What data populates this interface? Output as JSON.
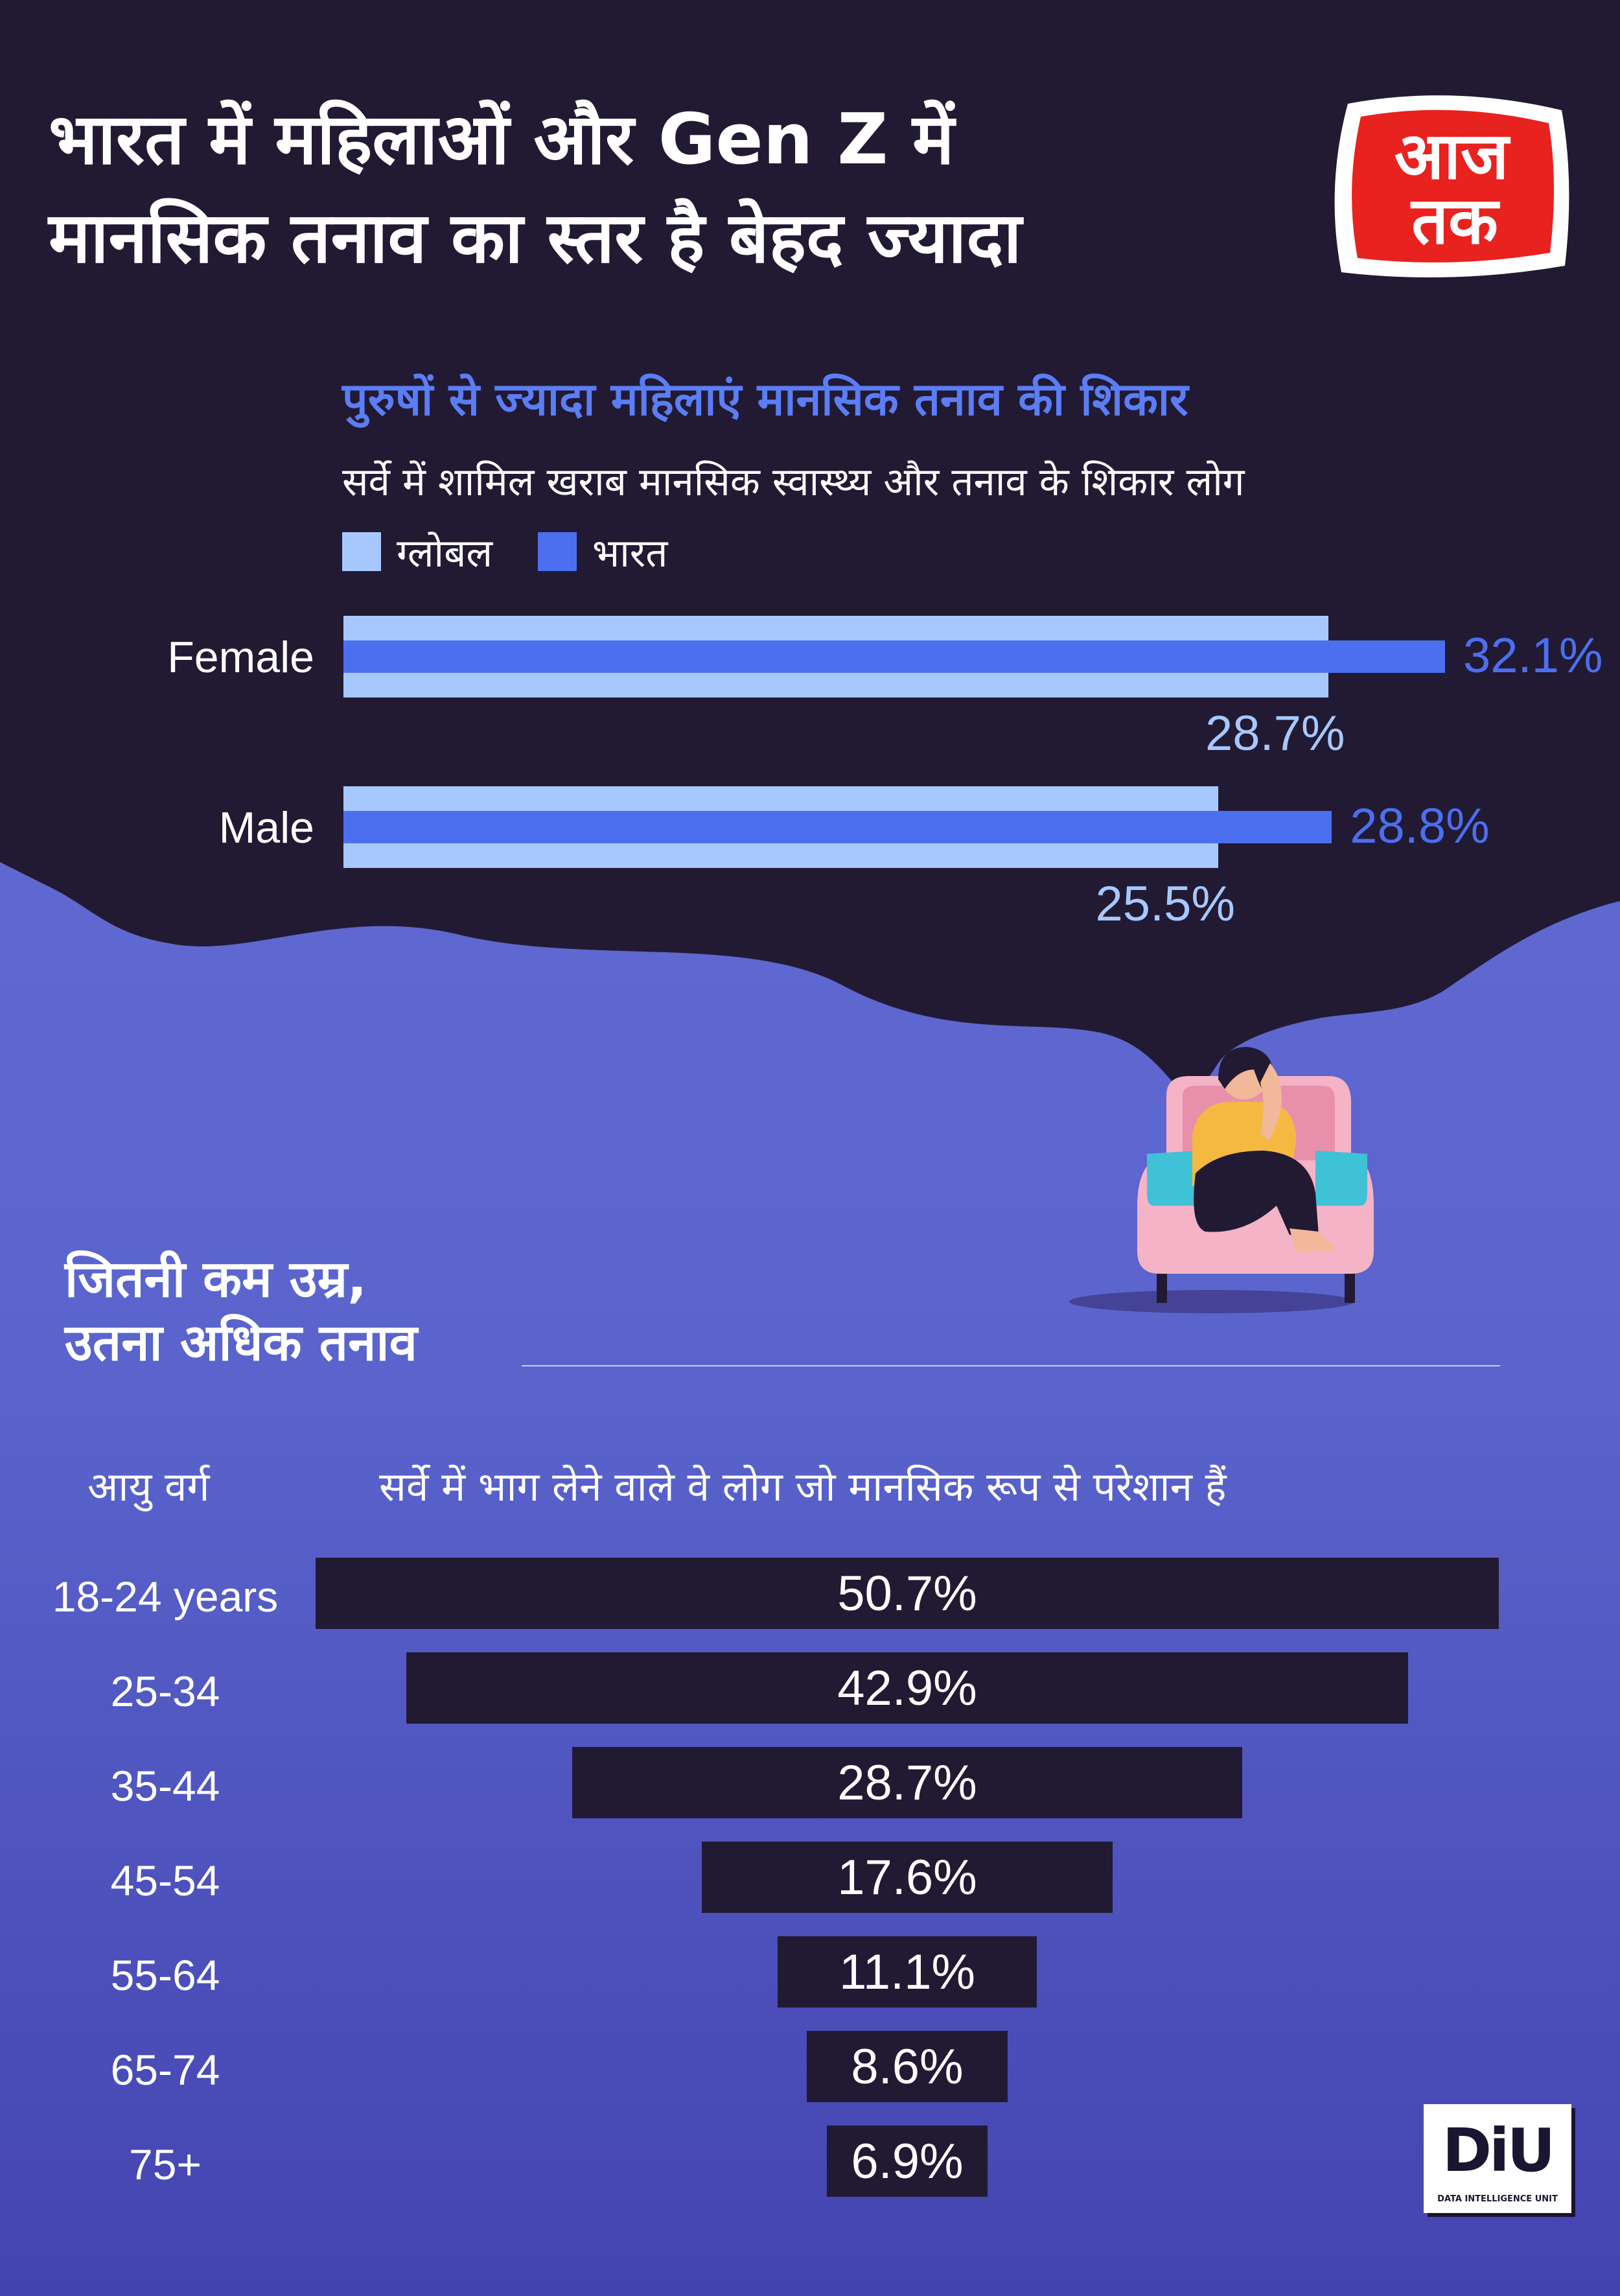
{
  "header": {
    "title_line1": "भारत में महिलाओं और Gen Z में",
    "title_line2": "मानसिक तनाव का स्तर है बेहद ज्यादा",
    "logo_line1": "आज",
    "logo_line2": "तक",
    "logo_icon": "aaj-tak-logo-icon"
  },
  "gender_section": {
    "subtitle": "पुरुषों से ज्यादा महिलाएं मानसिक तनाव की शिकार",
    "description": "सर्वे में शामिल खराब मानसिक स्वास्थ्य और तनाव के शिकार लोग",
    "legend": [
      {
        "label": "ग्लोबल",
        "color": "#a7c8ff"
      },
      {
        "label": "भारत",
        "color": "#4c6ff0"
      }
    ]
  },
  "age_section": {
    "title_line1": "जितनी कम उम्र,",
    "title_line2": "उतना अधिक तनाव",
    "col_age": "आयु वर्ग",
    "col_value": "सर्वे में भाग लेने वाले वे लोग जो मानसिक रूप से परेशान हैं"
  },
  "footer": {
    "diu_logo": "DiU",
    "diu_text": "DATA INTELLIGENCE UNIT"
  },
  "colors": {
    "dark": "#221a33",
    "global": "#a7c8ff",
    "india": "#4c6ff0",
    "purple_bg": "#5a60cc"
  },
  "chart_data": [
    {
      "type": "bar",
      "orientation": "horizontal",
      "title": "पुरुषों से ज्यादा महिलाएं मानसिक तनाव की शिकार",
      "categories": [
        "Female",
        "Male"
      ],
      "series": [
        {
          "name": "ग्लोबल",
          "values": [
            28.7,
            25.5
          ],
          "labels": [
            "28.7%",
            "25.5%"
          ]
        },
        {
          "name": "भारत",
          "values": [
            32.1,
            28.8
          ],
          "labels": [
            "32.1%",
            "28.8%"
          ]
        }
      ],
      "xlim": [
        0,
        32.1
      ]
    },
    {
      "type": "bar",
      "orientation": "horizontal",
      "title": "जितनी कम उम्र, उतना अधिक तनाव",
      "categories": [
        "18-24 years",
        "25-34",
        "35-44",
        "45-54",
        "55-64",
        "65-74",
        "75+"
      ],
      "values": [
        50.7,
        42.9,
        28.7,
        17.6,
        11.1,
        8.6,
        6.9
      ],
      "labels": [
        "50.7%",
        "42.9%",
        "28.7%",
        "17.6%",
        "11.1%",
        "8.6%",
        "6.9%"
      ],
      "xlim": [
        0,
        50.7
      ],
      "centered": true
    }
  ]
}
